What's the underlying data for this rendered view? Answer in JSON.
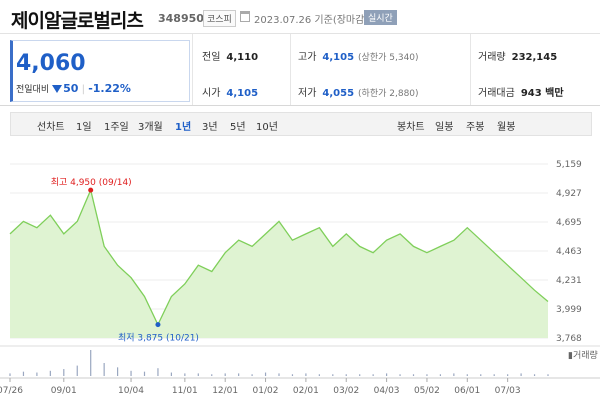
{
  "header": {
    "name": "제이알글로벌리츠",
    "code": "348950",
    "market": "코스피",
    "datetime": "2023.07.26 기준(장마감)",
    "live_label": "실시간"
  },
  "summary": {
    "price": "4,060",
    "change_label": "전일대비",
    "change_value": "50",
    "change_pct": "-1.22%",
    "prev_close_label": "전일",
    "prev_close": "4,110",
    "high_label": "고가",
    "high": "4,105",
    "upper_limit": "(상한가 5,340)",
    "volume_label": "거래량",
    "volume": "232,145",
    "open_label": "시가",
    "open": "4,105",
    "low_label": "저가",
    "low": "4,055",
    "lower_limit": "(하한가 2,880)",
    "value_label": "거래대금",
    "value": "943 백만"
  },
  "periods": {
    "chart_label": "선차트",
    "items": [
      "1일",
      "1주일",
      "3개월",
      "1년",
      "3년",
      "5년",
      "10년"
    ],
    "selected": "1년",
    "candle_label": "봉차트",
    "candle_items": [
      "일봉",
      "주봉",
      "월봉"
    ]
  },
  "colors": {
    "accent": "#1f5fc7",
    "line": "#7fcf5a",
    "fill": "#dff3d2",
    "high": "#e02020",
    "low": "#1f5fc7"
  },
  "chart_data": {
    "type": "area",
    "x": [
      "07/26",
      "08/01",
      "08/10",
      "08/20",
      "09/01",
      "09/07",
      "09/14",
      "09/21",
      "09/28",
      "10/04",
      "10/12",
      "10/21",
      "10/28",
      "11/01",
      "11/10",
      "11/20",
      "12/01",
      "12/10",
      "12/20",
      "01/02",
      "01/10",
      "01/20",
      "02/01",
      "02/10",
      "02/20",
      "03/02",
      "03/10",
      "03/20",
      "04/03",
      "04/10",
      "04/20",
      "05/02",
      "05/10",
      "05/20",
      "06/01",
      "06/10",
      "06/20",
      "07/03",
      "07/10",
      "07/18",
      "07/26"
    ],
    "y": [
      4600,
      4700,
      4650,
      4750,
      4600,
      4700,
      4950,
      4500,
      4350,
      4250,
      4100,
      3875,
      4100,
      4200,
      4350,
      4300,
      4450,
      4550,
      4500,
      4600,
      4700,
      4550,
      4600,
      4650,
      4500,
      4600,
      4500,
      4450,
      4550,
      4600,
      4500,
      4450,
      4500,
      4550,
      4650,
      4550,
      4450,
      4350,
      4250,
      4150,
      4060
    ],
    "ylim": [
      3768,
      5159
    ],
    "yticks": [
      "5,159",
      "4,927",
      "4,695",
      "4,463",
      "4,231",
      "3,999",
      "3,768"
    ],
    "xticks": [
      "07/26",
      "09/01",
      "10/04",
      "11/01",
      "12/01",
      "01/02",
      "02/01",
      "03/02",
      "04/03",
      "05/02",
      "06/01",
      "07/03"
    ],
    "high": {
      "label": "최고 4,950 (09/14)",
      "value": 4950
    },
    "low": {
      "label": "최저 3,875 (10/21)",
      "value": 3875
    },
    "volume_label": "거래량",
    "volume": [
      3,
      5,
      4,
      6,
      8,
      12,
      30,
      15,
      10,
      6,
      5,
      9,
      4,
      3,
      3,
      2,
      3,
      3,
      2,
      4,
      3,
      2,
      3,
      2,
      2,
      2,
      2,
      2,
      3,
      2,
      2,
      2,
      2,
      3,
      2,
      2,
      2,
      2,
      3,
      2,
      2
    ]
  }
}
